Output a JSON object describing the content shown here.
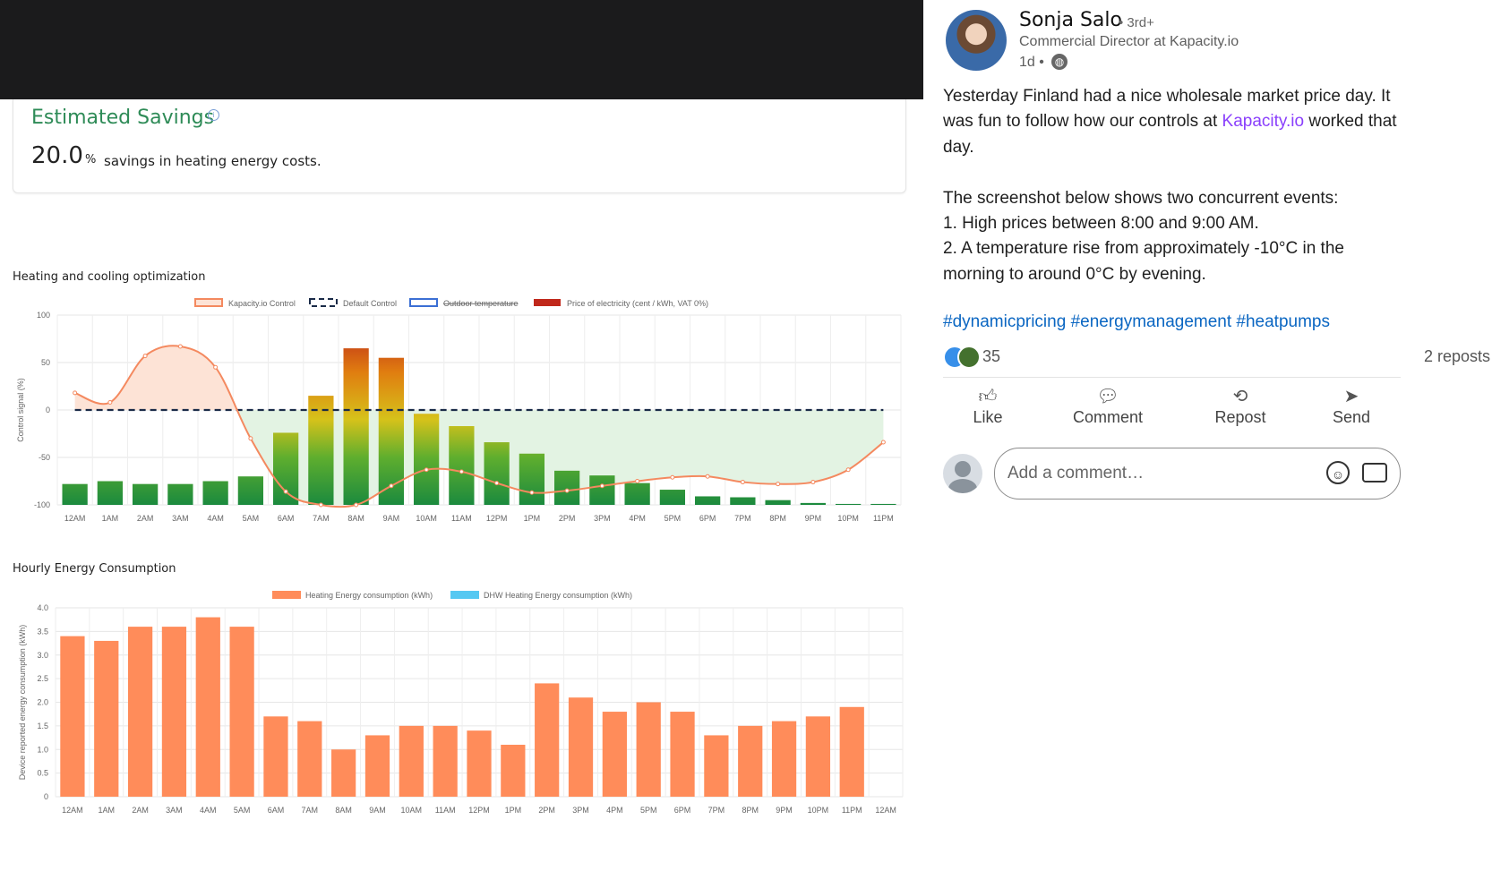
{
  "savings": {
    "title": "Estimated Savings",
    "info_icon": "info-icon",
    "value": "20.0",
    "unit": "%",
    "text": "savings in heating energy costs."
  },
  "chart_data": [
    {
      "type": "bar",
      "title": "Heating and cooling optimization",
      "ylabel": "Control signal (%)",
      "xlabel": "",
      "ylim": [
        -100,
        100
      ],
      "yticks": [
        100,
        50,
        0,
        -50,
        -100
      ],
      "legend": [
        {
          "label": "Kapacity.io Control",
          "color": "#f4895f",
          "style": "line"
        },
        {
          "label": "Default Control",
          "color": "#1a2b48",
          "style": "dashed"
        },
        {
          "label": "Outdoor temperature",
          "color": "#3b6fd4",
          "style": "hidden"
        },
        {
          "label": "Price of electricity (cent / kWh, VAT 0%)",
          "color": "#c0281b",
          "style": "bar"
        }
      ],
      "categories": [
        "12AM",
        "1AM",
        "2AM",
        "3AM",
        "4AM",
        "5AM",
        "6AM",
        "7AM",
        "8AM",
        "9AM",
        "10AM",
        "11AM",
        "12PM",
        "1PM",
        "2PM",
        "3PM",
        "4PM",
        "5PM",
        "6PM",
        "7PM",
        "8PM",
        "9PM",
        "10PM",
        "11PM"
      ],
      "series": [
        {
          "name": "Price of electricity (cent / kWh, VAT 0%)",
          "type": "bar",
          "values": [
            -78,
            -75,
            -78,
            -78,
            -75,
            -70,
            -24,
            15,
            65,
            55,
            -4,
            -17,
            -34,
            -46,
            -64,
            -69,
            -77,
            -84,
            -91,
            -92,
            -95,
            -98,
            -99,
            -99
          ]
        },
        {
          "name": "Kapacity.io Control",
          "type": "line",
          "values": [
            18,
            8,
            57,
            67,
            45,
            -30,
            -86,
            -100,
            -100,
            -80,
            -63,
            -65,
            -77,
            -87,
            -85,
            -80,
            -75,
            -71,
            -70,
            -76,
            -78,
            -76,
            -63,
            -34
          ]
        },
        {
          "name": "Default Control",
          "type": "line",
          "values": [
            0,
            0,
            0,
            0,
            0,
            0,
            0,
            0,
            0,
            0,
            0,
            0,
            0,
            0,
            0,
            0,
            0,
            0,
            0,
            0,
            0,
            0,
            0,
            0
          ]
        }
      ]
    },
    {
      "type": "bar",
      "title": "Hourly Energy Consumption",
      "ylabel": "Device reported energy consumption (kWh)",
      "xlabel": "",
      "ylim": [
        0,
        4.0
      ],
      "yticks": [
        "4.0",
        "3.5",
        "3.0",
        "2.5",
        "2.0",
        "1.5",
        "1.0",
        "0.5",
        "0"
      ],
      "legend": [
        {
          "label": "Heating Energy consumption (kWh)",
          "color": "#ff8c5a"
        },
        {
          "label": "DHW Heating Energy consumption (kWh)",
          "color": "#55c8f2"
        }
      ],
      "categories": [
        "12AM",
        "1AM",
        "2AM",
        "3AM",
        "4AM",
        "5AM",
        "6AM",
        "7AM",
        "8AM",
        "9AM",
        "10AM",
        "11AM",
        "12PM",
        "1PM",
        "2PM",
        "3PM",
        "4PM",
        "5PM",
        "6PM",
        "7PM",
        "8PM",
        "9PM",
        "10PM",
        "11PM",
        "12AM"
      ],
      "series": [
        {
          "name": "Heating Energy consumption (kWh)",
          "values": [
            3.4,
            3.3,
            3.6,
            3.6,
            3.8,
            3.6,
            1.7,
            1.6,
            1.0,
            1.3,
            1.5,
            1.5,
            1.4,
            1.1,
            2.4,
            2.1,
            1.8,
            2.0,
            1.8,
            1.3,
            1.5,
            1.6,
            1.7,
            1.9,
            0
          ]
        }
      ]
    }
  ],
  "post": {
    "author": "Sonja Salo",
    "degree": "• 3rd+",
    "headline": "Commercial Director at Kapacity.io",
    "time": "1d •",
    "globe_icon": "globe-icon",
    "para1_before": "Yesterday Finland had a nice wholesale market price day. It was fun to follow how our controls at ",
    "para1_link": "Kapacity.io",
    "para1_after": " worked that day.",
    "line2": "The screenshot below shows two concurrent events:",
    "line3": "1. High prices between 8:00 and 9:00 AM.",
    "line4": "2. A temperature rise from approximately -10°C in the morning to around 0°C by evening.",
    "hashtags": "#dynamicpricing #energymanagement #heatpumps",
    "reaction_count": "35",
    "reposts": "2 reposts",
    "actions": {
      "like": "Like",
      "comment": "Comment",
      "repost": "Repost",
      "send": "Send"
    },
    "comment_placeholder": "Add a comment…"
  }
}
